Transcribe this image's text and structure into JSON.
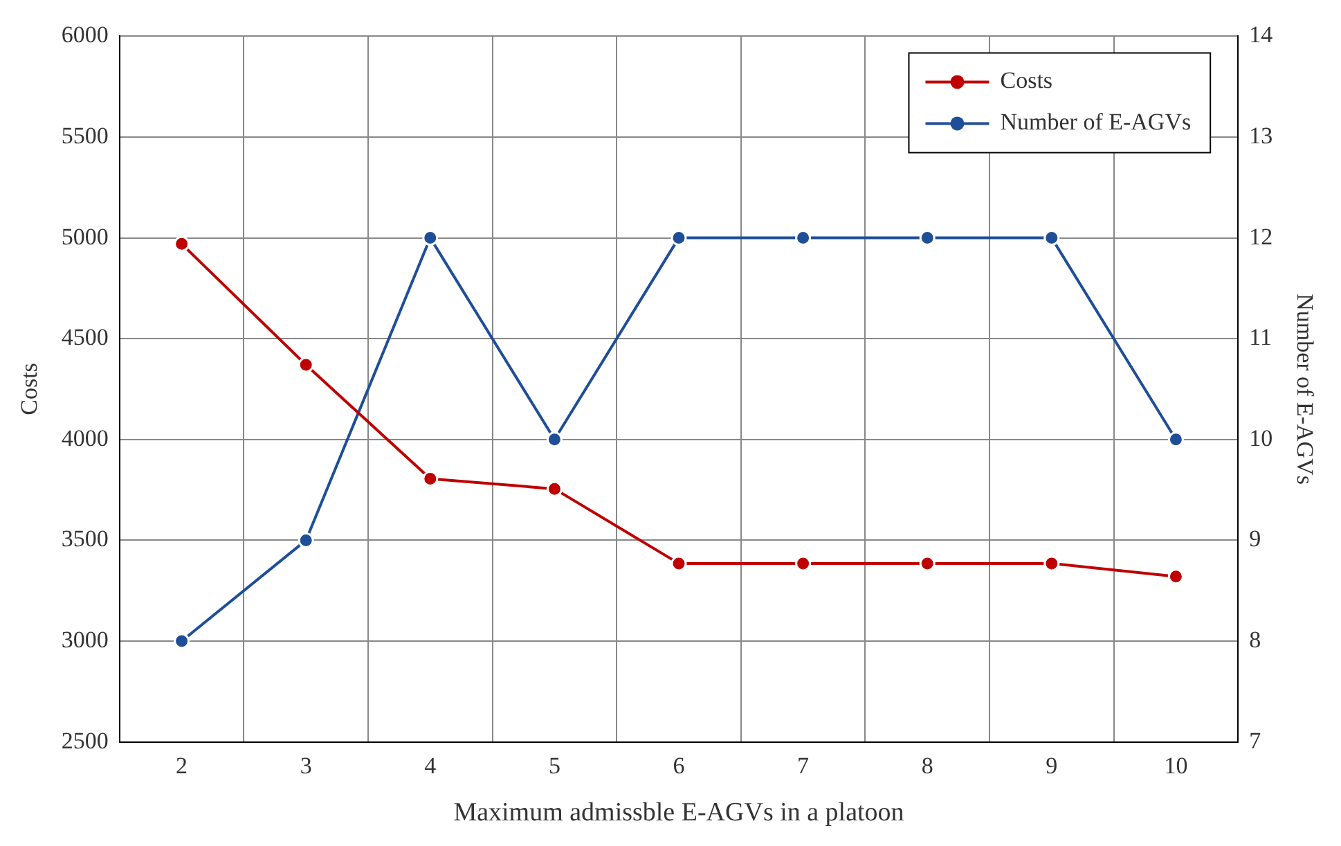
{
  "chart_data": {
    "type": "line",
    "xlabel": "Maximum admissble E-AGVs in a platoon",
    "ylabel": "Costs",
    "y2label": "Number of E-AGVs",
    "categories": [
      "2",
      "3",
      "4",
      "5",
      "6",
      "7",
      "8",
      "9",
      "10"
    ],
    "series": [
      {
        "name": "Costs",
        "color": "#c00000",
        "values": [
          4970,
          4370,
          3805,
          3755,
          3385,
          3385,
          3385,
          3385,
          3320
        ]
      },
      {
        "name": "Number of E-AGVs",
        "color": "#1f4e99",
        "values": [
          8,
          9,
          12,
          10,
          12,
          12,
          12,
          12,
          10
        ],
        "axis": "y2"
      }
    ],
    "ylim": [
      2500,
      6000
    ],
    "yticks": [
      2500,
      3000,
      3500,
      4000,
      4500,
      5000,
      5500,
      6000
    ],
    "y2lim": [
      7,
      14
    ],
    "y2ticks": [
      7,
      8,
      9,
      10,
      11,
      12,
      13,
      14
    ],
    "grid": true,
    "legend": "top right",
    "marker": "circle",
    "line_style": "solid"
  }
}
